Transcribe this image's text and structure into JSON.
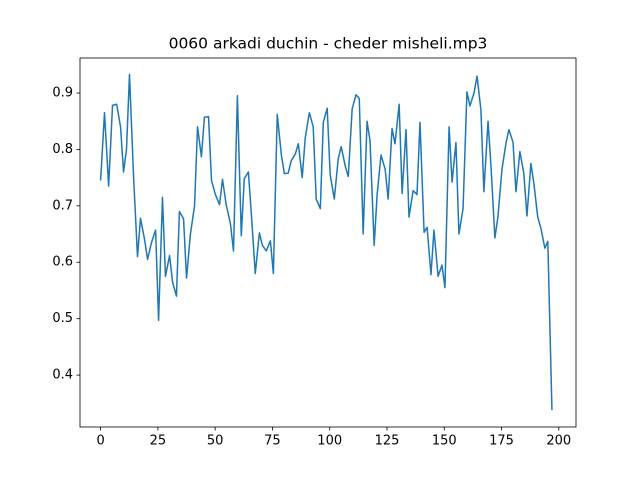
{
  "chart_data": {
    "type": "line",
    "title": "0060 arkadi duchin - cheder misheli.mp3",
    "x": [
      0,
      1.7,
      3.5,
      5.2,
      7.0,
      8.7,
      10.0,
      11.3,
      12.6,
      14.4,
      16.1,
      17.4,
      19.2,
      20.5,
      22.2,
      24.0,
      25.3,
      27.0,
      28.3,
      30.1,
      31.4,
      33.1,
      34.4,
      36.2,
      37.5,
      39.2,
      41.0,
      42.3,
      44.0,
      45.3,
      47.1,
      48.4,
      50.1,
      51.9,
      53.2,
      54.9,
      56.6,
      58.0,
      59.7,
      61.4,
      62.7,
      64.5,
      65.8,
      67.5,
      69.3,
      70.6,
      72.3,
      74.1,
      75.4,
      77.1,
      78.9,
      80.2,
      81.9,
      83.2,
      85.0,
      86.3,
      88.0,
      89.3,
      91.1,
      92.8,
      94.1,
      95.9,
      97.2,
      98.9,
      100.2,
      102.0,
      103.7,
      105.0,
      106.8,
      108.1,
      109.8,
      111.5,
      112.9,
      114.6,
      116.3,
      117.6,
      119.4,
      120.7,
      122.4,
      124.2,
      125.5,
      127.2,
      128.5,
      130.3,
      131.6,
      133.3,
      134.6,
      136.4,
      138.1,
      139.4,
      141.2,
      142.5,
      144.2,
      145.5,
      147.3,
      149.0,
      150.3,
      152.1,
      153.4,
      155.1,
      156.4,
      158.2,
      159.9,
      161.2,
      163.0,
      164.3,
      166.0,
      167.3,
      169.1,
      170.4,
      172.1,
      173.4,
      175.2,
      176.9,
      178.2,
      180.0,
      181.3,
      183.0,
      184.7,
      186.1,
      187.8,
      189.1,
      190.8,
      192.2,
      193.9,
      195.2,
      197.0
    ],
    "series": [
      {
        "color": "#1f77b4",
        "values": [
          0.745,
          0.865,
          0.735,
          0.878,
          0.88,
          0.84,
          0.76,
          0.8,
          0.933,
          0.75,
          0.61,
          0.678,
          0.64,
          0.605,
          0.635,
          0.657,
          0.497,
          0.715,
          0.575,
          0.612,
          0.565,
          0.54,
          0.69,
          0.677,
          0.572,
          0.65,
          0.7,
          0.84,
          0.787,
          0.857,
          0.858,
          0.745,
          0.72,
          0.702,
          0.747,
          0.7,
          0.67,
          0.62,
          0.895,
          0.647,
          0.748,
          0.76,
          0.685,
          0.58,
          0.652,
          0.63,
          0.62,
          0.638,
          0.58,
          0.862,
          0.79,
          0.757,
          0.758,
          0.78,
          0.792,
          0.81,
          0.75,
          0.82,
          0.865,
          0.84,
          0.712,
          0.695,
          0.848,
          0.873,
          0.755,
          0.712,
          0.783,
          0.805,
          0.77,
          0.752,
          0.872,
          0.897,
          0.89,
          0.65,
          0.85,
          0.815,
          0.63,
          0.72,
          0.79,
          0.765,
          0.712,
          0.837,
          0.81,
          0.88,
          0.722,
          0.835,
          0.68,
          0.727,
          0.72,
          0.848,
          0.653,
          0.662,
          0.578,
          0.657,
          0.575,
          0.595,
          0.555,
          0.84,
          0.742,
          0.812,
          0.65,
          0.695,
          0.902,
          0.877,
          0.9,
          0.93,
          0.87,
          0.725,
          0.85,
          0.77,
          0.643,
          0.68,
          0.765,
          0.81,
          0.835,
          0.813,
          0.725,
          0.796,
          0.758,
          0.682,
          0.775,
          0.74,
          0.68,
          0.66,
          0.625,
          0.637,
          0.338
        ]
      }
    ],
    "xlim": [
      -9,
      207.5
    ],
    "xticks": [
      0,
      25,
      50,
      75,
      100,
      125,
      150,
      175,
      200
    ],
    "ylim": [
      0.308,
      0.962
    ],
    "yticks": [
      0.4,
      0.5,
      0.6,
      0.7,
      0.8,
      0.9
    ]
  }
}
